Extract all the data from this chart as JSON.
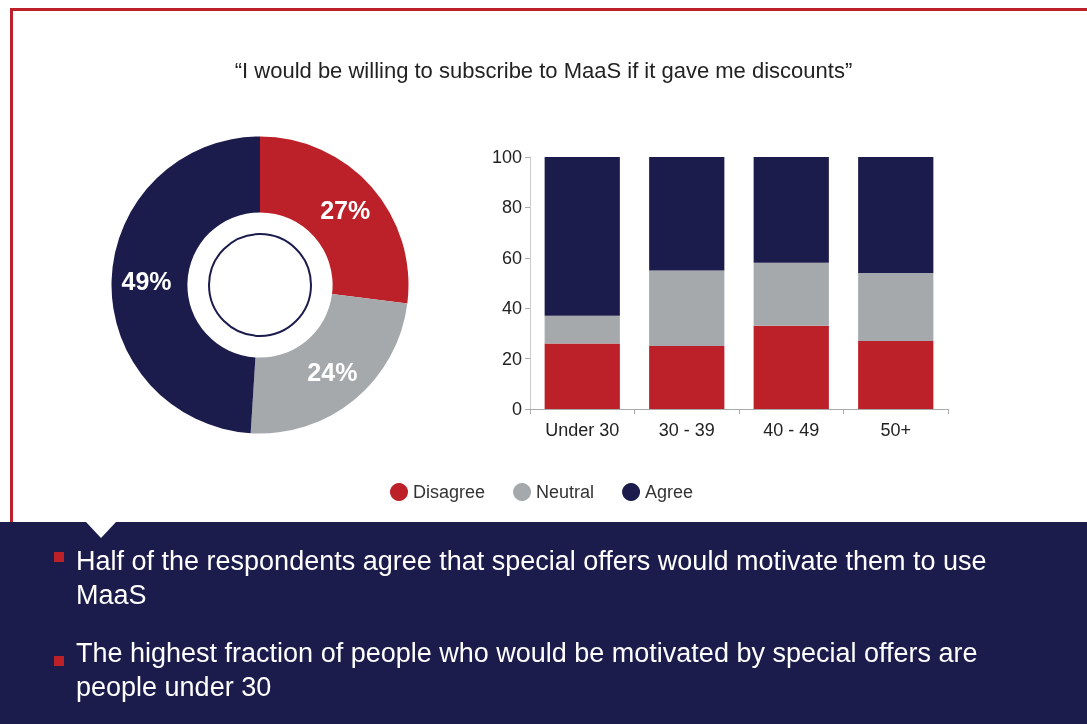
{
  "chart_data": [
    {
      "type": "donut",
      "title": "“I would be willing to subscribe to MaaS if it gave me discounts”",
      "categories": [
        null,
        null,
        null
      ],
      "values": [
        27,
        24,
        49
      ],
      "colors": [
        "#bc2028",
        "#a6a9ac",
        "#1c1c4c"
      ],
      "value_labels": [
        "27%",
        "24%",
        "49%"
      ],
      "legend": false
    },
    {
      "type": "bar",
      "stacked": true,
      "categories": [
        "Under 30",
        "30 - 39",
        "40 - 49",
        "50+"
      ],
      "series": [
        {
          "name": "Disagree",
          "color": "#bc2028",
          "values": [
            26,
            25,
            33,
            27
          ]
        },
        {
          "name": "Neutral",
          "color": "#a6a9ac",
          "values": [
            11,
            30,
            25,
            27
          ]
        },
        {
          "name": "Agree",
          "color": "#1c1c4c",
          "values": [
            63,
            45,
            42,
            46
          ]
        }
      ],
      "ylim": [
        0,
        100
      ],
      "yticks": [
        0,
        20,
        40,
        60,
        80,
        100
      ],
      "grid": false,
      "legend": "bottom",
      "annotations": [
        "Half of the respondents agree that special offers would motivate them to use MaaS",
        "The highest fraction of people who would be motivated by special offers are people under 30"
      ]
    }
  ]
}
